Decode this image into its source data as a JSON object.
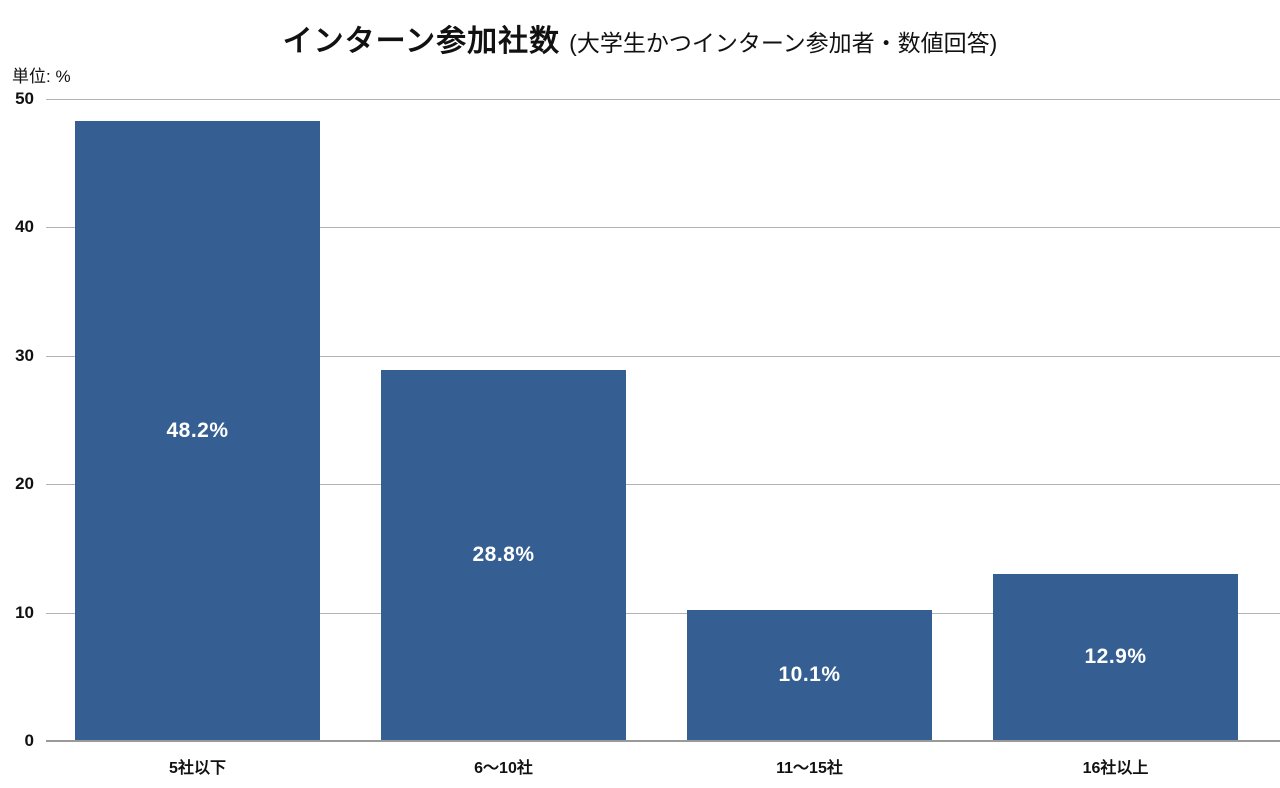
{
  "chart_data": {
    "type": "bar",
    "title": "インターン参加社数",
    "subtitle": "(大学生かつインターン参加者・数値回答)",
    "unit_label": "単位: %",
    "unit": "%",
    "categories": [
      "5社以下",
      "6〜10社",
      "11〜15社",
      "16社以上"
    ],
    "values": [
      48.2,
      28.8,
      10.1,
      12.9
    ],
    "value_labels": [
      "48.2%",
      "28.8%",
      "10.1%",
      "12.9%"
    ],
    "xlabel": "",
    "ylabel": "%",
    "ylim": [
      0,
      50
    ],
    "yticks": [
      0,
      10,
      20,
      30,
      40,
      50
    ],
    "grid": true,
    "legend": false,
    "bar_color": "#355E92",
    "value_label_color": "#ffffff",
    "gridline_color": "#b3b3b3",
    "axis_line_color": "#999999",
    "text_color": "#111111"
  }
}
